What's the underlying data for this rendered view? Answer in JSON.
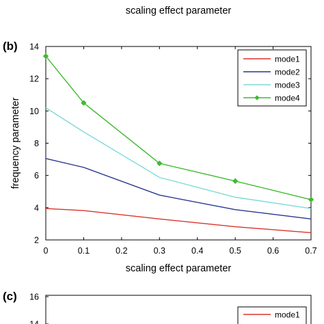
{
  "chart_data": [
    {
      "type": "line",
      "panel_label": "(b)",
      "top_xlabel": "scaling effect parameter",
      "xlabel": "scaling effect parameter",
      "ylabel": "frequency parameter",
      "xlim": [
        0,
        0.7
      ],
      "ylim": [
        2,
        14
      ],
      "xticks": [
        "0",
        "0.1",
        "0.2",
        "0.3",
        "0.4",
        "0.5",
        "0.6",
        "0.7"
      ],
      "yticks": [
        "2",
        "4",
        "6",
        "8",
        "10",
        "12",
        "14"
      ],
      "grid": false,
      "legend_position": "top-right",
      "x": [
        0,
        0.1,
        0.3,
        0.5,
        0.7
      ],
      "series": [
        {
          "name": "mode1",
          "color": "#d9342b",
          "marker": "none",
          "values": [
            3.95,
            3.82,
            3.3,
            2.82,
            2.45
          ]
        },
        {
          "name": "mode2",
          "color": "#27378f",
          "marker": "none",
          "values": [
            7.05,
            6.5,
            4.78,
            3.88,
            3.3
          ]
        },
        {
          "name": "mode3",
          "color": "#7fd9d9",
          "marker": "none",
          "values": [
            10.2,
            8.7,
            5.88,
            4.65,
            3.95
          ]
        },
        {
          "name": "mode4",
          "color": "#3fba2f",
          "marker": "diamond",
          "values": [
            13.4,
            10.5,
            6.75,
            5.65,
            4.5
          ]
        }
      ]
    },
    {
      "type": "line",
      "panel_label": "(c)",
      "yticks": [
        "14",
        "16"
      ],
      "ylim": [
        null,
        16
      ],
      "legend_position": "top-right",
      "series": [
        {
          "name": "mode1",
          "color": "#d9342b",
          "marker": "none",
          "values": []
        }
      ]
    }
  ]
}
